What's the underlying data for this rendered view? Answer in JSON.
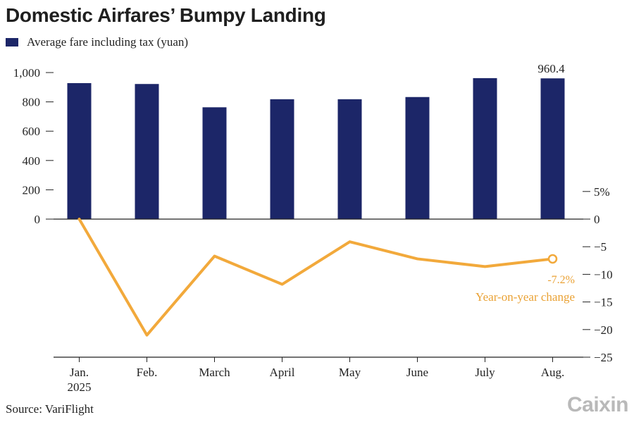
{
  "header": {
    "title": "Domestic Airfares’ Bumpy Landing"
  },
  "legend": {
    "bar_label": "Average fare including tax (yuan)"
  },
  "footer": {
    "source": "Source: VariFlight",
    "brand": "Caixin"
  },
  "colors": {
    "bar": "#1c2668",
    "line": "#f2a93b",
    "annotation": "#eaa235",
    "axis": "#222222",
    "text": "#222222"
  },
  "chart_data": {
    "type": "bar",
    "title": "Domestic Airfares’ Bumpy Landing",
    "categories": [
      "Jan.",
      "Feb.",
      "March",
      "April",
      "May",
      "June",
      "July",
      "Aug."
    ],
    "category_sublabels": [
      "2025",
      "",
      "",
      "",
      "",
      "",
      "",
      ""
    ],
    "series": [
      {
        "name": "Average fare including tax (yuan)",
        "type": "bar",
        "axis": "left",
        "values": [
          928,
          922,
          763,
          818,
          818,
          833,
          962,
          960.4
        ]
      },
      {
        "name": "Year-on-year change",
        "type": "line",
        "axis": "right",
        "values": [
          0,
          -21,
          -6.7,
          -11.8,
          -4.1,
          -7.2,
          -8.6,
          -7.2
        ]
      }
    ],
    "left_axis": {
      "min": 0,
      "max": 1000,
      "ticks": [
        0,
        200,
        400,
        600,
        800,
        1000
      ],
      "tick_labels": [
        "0",
        "200",
        "400",
        "600",
        "800",
        "1,000"
      ]
    },
    "right_axis": {
      "min": -25,
      "max": 5,
      "ticks": [
        5,
        0,
        -5,
        -10,
        -15,
        -20,
        -25
      ],
      "tick_labels": [
        "5%",
        "0",
        "−5",
        "−10",
        "−15",
        "−20",
        "−25"
      ]
    },
    "annotations": {
      "last_bar_value": "960.4",
      "last_line_value": "-7.2%",
      "line_label": "Year-on-year change"
    },
    "xlabel": "",
    "ylabel": ""
  }
}
